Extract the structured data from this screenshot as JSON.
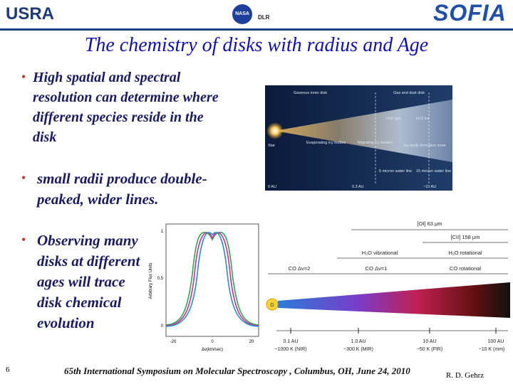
{
  "header": {
    "logos": [
      "USRA",
      "NASA",
      "DLR",
      "SOFIA"
    ]
  },
  "title": "The chemistry of disks with radius and Age",
  "bullets": [
    "High spatial and spectral resolution can determine where  different species reside in the disk",
    "small radii produce double-peaked, wider lines.",
    "Observing many disks at different ages will trace disk chemical evolution"
  ],
  "disk_figure": {
    "labels": [
      "Gaseous inner disk",
      "Gas and dust disk",
      "H₂O gas",
      "H₂O ice",
      "Star",
      "Evaporating icy bodies",
      "Migrating icy bodies",
      "Icy-body formation zone",
      "6 micron water line",
      "15 micron water line"
    ],
    "axis": [
      "0 AU",
      "0.3 AU",
      "~10 AU"
    ]
  },
  "profile_chart": {
    "ylabel": "Arbitrary Flux Units",
    "xlabel": "Δv(km/sec)",
    "yticks": [
      "1",
      "0.5",
      "0"
    ],
    "xticks": [
      "-20",
      "0",
      "20"
    ]
  },
  "spectrum_figure": {
    "ranges": [
      "[OI] 63 μm",
      "[CII] 158 μm",
      "H₂O vibrational",
      "H₂O rotational",
      "CO Δv=2",
      "CO Δv=1",
      "CO rotational"
    ],
    "star": "G",
    "distances": [
      "0.1 AU",
      "1.0 AU",
      "10 AU",
      "100 AU"
    ],
    "temperatures": [
      "~1000 K (NIR)",
      "~300 K (MIR)",
      "~50 K (FIR)",
      "~10 K (mm)"
    ]
  },
  "footer": {
    "page": "6",
    "event": "65th International Symposium on Molecular Spectroscopy , Columbus, OH, June 24, 2010",
    "author": "R. D. Gehrz"
  }
}
